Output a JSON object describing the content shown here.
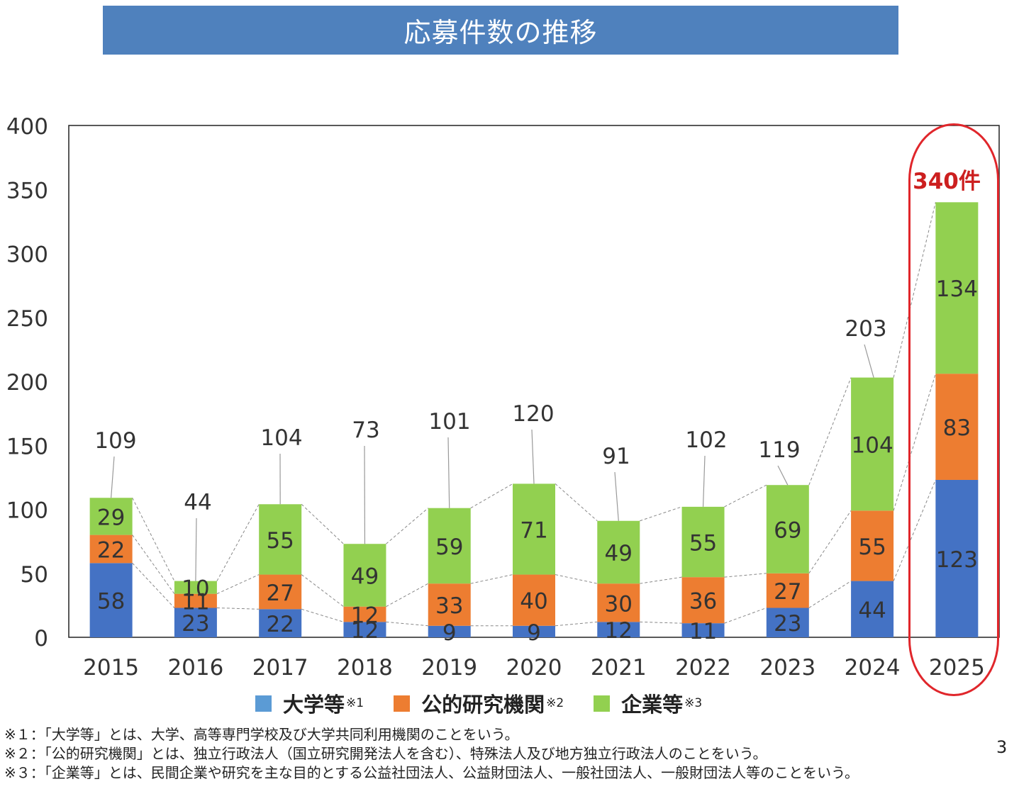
{
  "title": "応募件数の推移",
  "chart_data": {
    "type": "bar",
    "stacked": true,
    "categories": [
      "2015",
      "2016",
      "2017",
      "2018",
      "2019",
      "2020",
      "2021",
      "2022",
      "2023",
      "2024",
      "2025"
    ],
    "series": [
      {
        "name": "大学等",
        "note": "※1",
        "color": "#4472c4",
        "values": [
          58,
          23,
          22,
          12,
          9,
          9,
          12,
          11,
          23,
          44,
          123
        ]
      },
      {
        "name": "公的研究機関",
        "note": "※2",
        "color": "#ed7d31",
        "values": [
          22,
          11,
          27,
          12,
          33,
          40,
          30,
          36,
          27,
          55,
          83
        ]
      },
      {
        "name": "企業等",
        "note": "※3",
        "color": "#92d050",
        "values": [
          29,
          10,
          55,
          49,
          59,
          71,
          49,
          55,
          69,
          104,
          134
        ]
      }
    ],
    "totals": [
      109,
      44,
      104,
      73,
      101,
      120,
      91,
      102,
      119,
      203,
      340
    ],
    "ylim": [
      0,
      400
    ],
    "yticks": [
      0,
      50,
      100,
      150,
      200,
      250,
      300,
      350,
      400
    ],
    "legend": "bottom",
    "grid": false,
    "highlight": {
      "category": "2025",
      "label": "340件",
      "color": "#e0262b"
    }
  },
  "footnotes": [
    "※１：「大学等」とは、大学、高等専門学校及び大学共同利用機関のことをいう。",
    "※２：「公的研究機関」とは、独立行政法人（国立研究開発法人を含む）、特殊法人及び地方独立行政法人のことをいう。",
    "※３：「企業等」とは、民間企業や研究を主な目的とする公益社団法人、公益財団法人、一般社団法人、一般財団法人等のことをいう。"
  ],
  "page_number": "3"
}
